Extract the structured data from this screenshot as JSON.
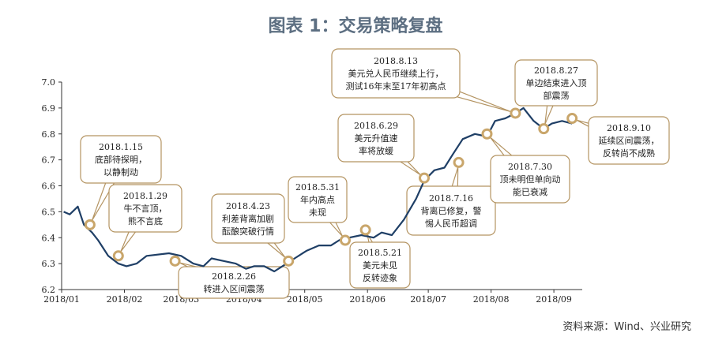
{
  "chart_data": {
    "type": "line",
    "title": "图表 1：交易策略复盘",
    "source": "资料来源：Wind、兴业研究",
    "ylim": [
      6.2,
      7.0
    ],
    "y_ticks": [
      "6.2",
      "6.3",
      "6.4",
      "6.5",
      "6.6",
      "6.7",
      "6.8",
      "6.9",
      "7.0"
    ],
    "x_ticks": [
      "2018/01",
      "2018/02",
      "2018/03",
      "2018/04",
      "2018/05",
      "2018/06",
      "2018/07",
      "2018/08",
      "2018/09"
    ],
    "grid": false,
    "colors": {
      "line": "#1f3f66",
      "marker": "#c9a66b",
      "title": "#5d6f82",
      "box_border": "#b49462"
    },
    "series": [
      {
        "x": [
          "2018-01-02",
          "2018-01-05",
          "2018-01-09",
          "2018-01-12",
          "2018-01-16",
          "2018-01-19",
          "2018-01-24",
          "2018-01-29",
          "2018-02-02",
          "2018-02-07",
          "2018-02-12",
          "2018-02-23",
          "2018-03-01",
          "2018-03-07",
          "2018-03-12",
          "2018-03-16",
          "2018-03-22",
          "2018-03-28",
          "2018-04-02",
          "2018-04-06",
          "2018-04-11",
          "2018-04-16",
          "2018-04-20",
          "2018-04-26",
          "2018-05-02",
          "2018-05-08",
          "2018-05-14",
          "2018-05-18",
          "2018-05-23",
          "2018-05-29",
          "2018-06-04",
          "2018-06-08",
          "2018-06-13",
          "2018-06-19",
          "2018-06-25",
          "2018-06-29",
          "2018-07-04",
          "2018-07-09",
          "2018-07-13",
          "2018-07-18",
          "2018-07-24",
          "2018-07-30",
          "2018-08-03",
          "2018-08-08",
          "2018-08-13",
          "2018-08-17",
          "2018-08-22",
          "2018-08-27",
          "2018-08-31",
          "2018-09-05",
          "2018-09-10"
        ],
        "values": [
          6.5,
          6.49,
          6.52,
          6.45,
          6.42,
          6.39,
          6.33,
          6.3,
          6.29,
          6.3,
          6.33,
          6.34,
          6.33,
          6.3,
          6.29,
          6.32,
          6.31,
          6.3,
          6.28,
          6.29,
          6.29,
          6.27,
          6.29,
          6.32,
          6.35,
          6.37,
          6.37,
          6.39,
          6.4,
          6.41,
          6.4,
          6.42,
          6.41,
          6.47,
          6.55,
          6.62,
          6.66,
          6.67,
          6.72,
          6.78,
          6.8,
          6.79,
          6.85,
          6.86,
          6.88,
          6.9,
          6.85,
          6.82,
          6.84,
          6.85,
          6.84
        ]
      }
    ],
    "markers": [
      {
        "date": "2018-01-15",
        "value": 6.45
      },
      {
        "date": "2018-01-29",
        "value": 6.33
      },
      {
        "date": "2018-02-26",
        "value": 6.31
      },
      {
        "date": "2018-04-23",
        "value": 6.31
      },
      {
        "date": "2018-05-21",
        "value": 6.39
      },
      {
        "date": "2018-05-31",
        "value": 6.43
      },
      {
        "date": "2018-06-29",
        "value": 6.63
      },
      {
        "date": "2018-07-16",
        "value": 6.69
      },
      {
        "date": "2018-07-30",
        "value": 6.8
      },
      {
        "date": "2018-08-13",
        "value": 6.88
      },
      {
        "date": "2018-08-27",
        "value": 6.82
      },
      {
        "date": "2018-09-10",
        "value": 6.86
      }
    ],
    "annotations": [
      {
        "date": "2018.1.15",
        "lines": [
          "底部待探明，",
          "以静制动"
        ]
      },
      {
        "date": "2018.1.29",
        "lines": [
          "牛不言顶，",
          "熊不言底"
        ]
      },
      {
        "date": "2018.2.26",
        "lines": [
          "转进入区间震荡"
        ]
      },
      {
        "date": "2018.4.23",
        "lines": [
          "利差背离加剧",
          "酝酿突破行情"
        ]
      },
      {
        "date": "2018.5.31",
        "lines": [
          "年内高点",
          "未现"
        ]
      },
      {
        "date": "2018.5.21",
        "lines": [
          "美元未见",
          "反转迹象"
        ]
      },
      {
        "date": "2018.6.29",
        "lines": [
          "美元升值速",
          "率将放缓"
        ]
      },
      {
        "date": "2018.7.16",
        "lines": [
          "背离已修复，警",
          "惕人民币超调"
        ]
      },
      {
        "date": "2018.7.30",
        "lines": [
          "顶未明但单向动",
          "能已衰减"
        ]
      },
      {
        "date": "2018.8.13",
        "lines": [
          "美元兑人民币继续上行，",
          "测试16年末至17年初高点"
        ]
      },
      {
        "date": "2018.8.27",
        "lines": [
          "单边结束进入顶",
          "部震荡"
        ]
      },
      {
        "date": "2018.9.10",
        "lines": [
          "延续区间震荡，",
          "反转尚不成熟"
        ]
      }
    ]
  }
}
